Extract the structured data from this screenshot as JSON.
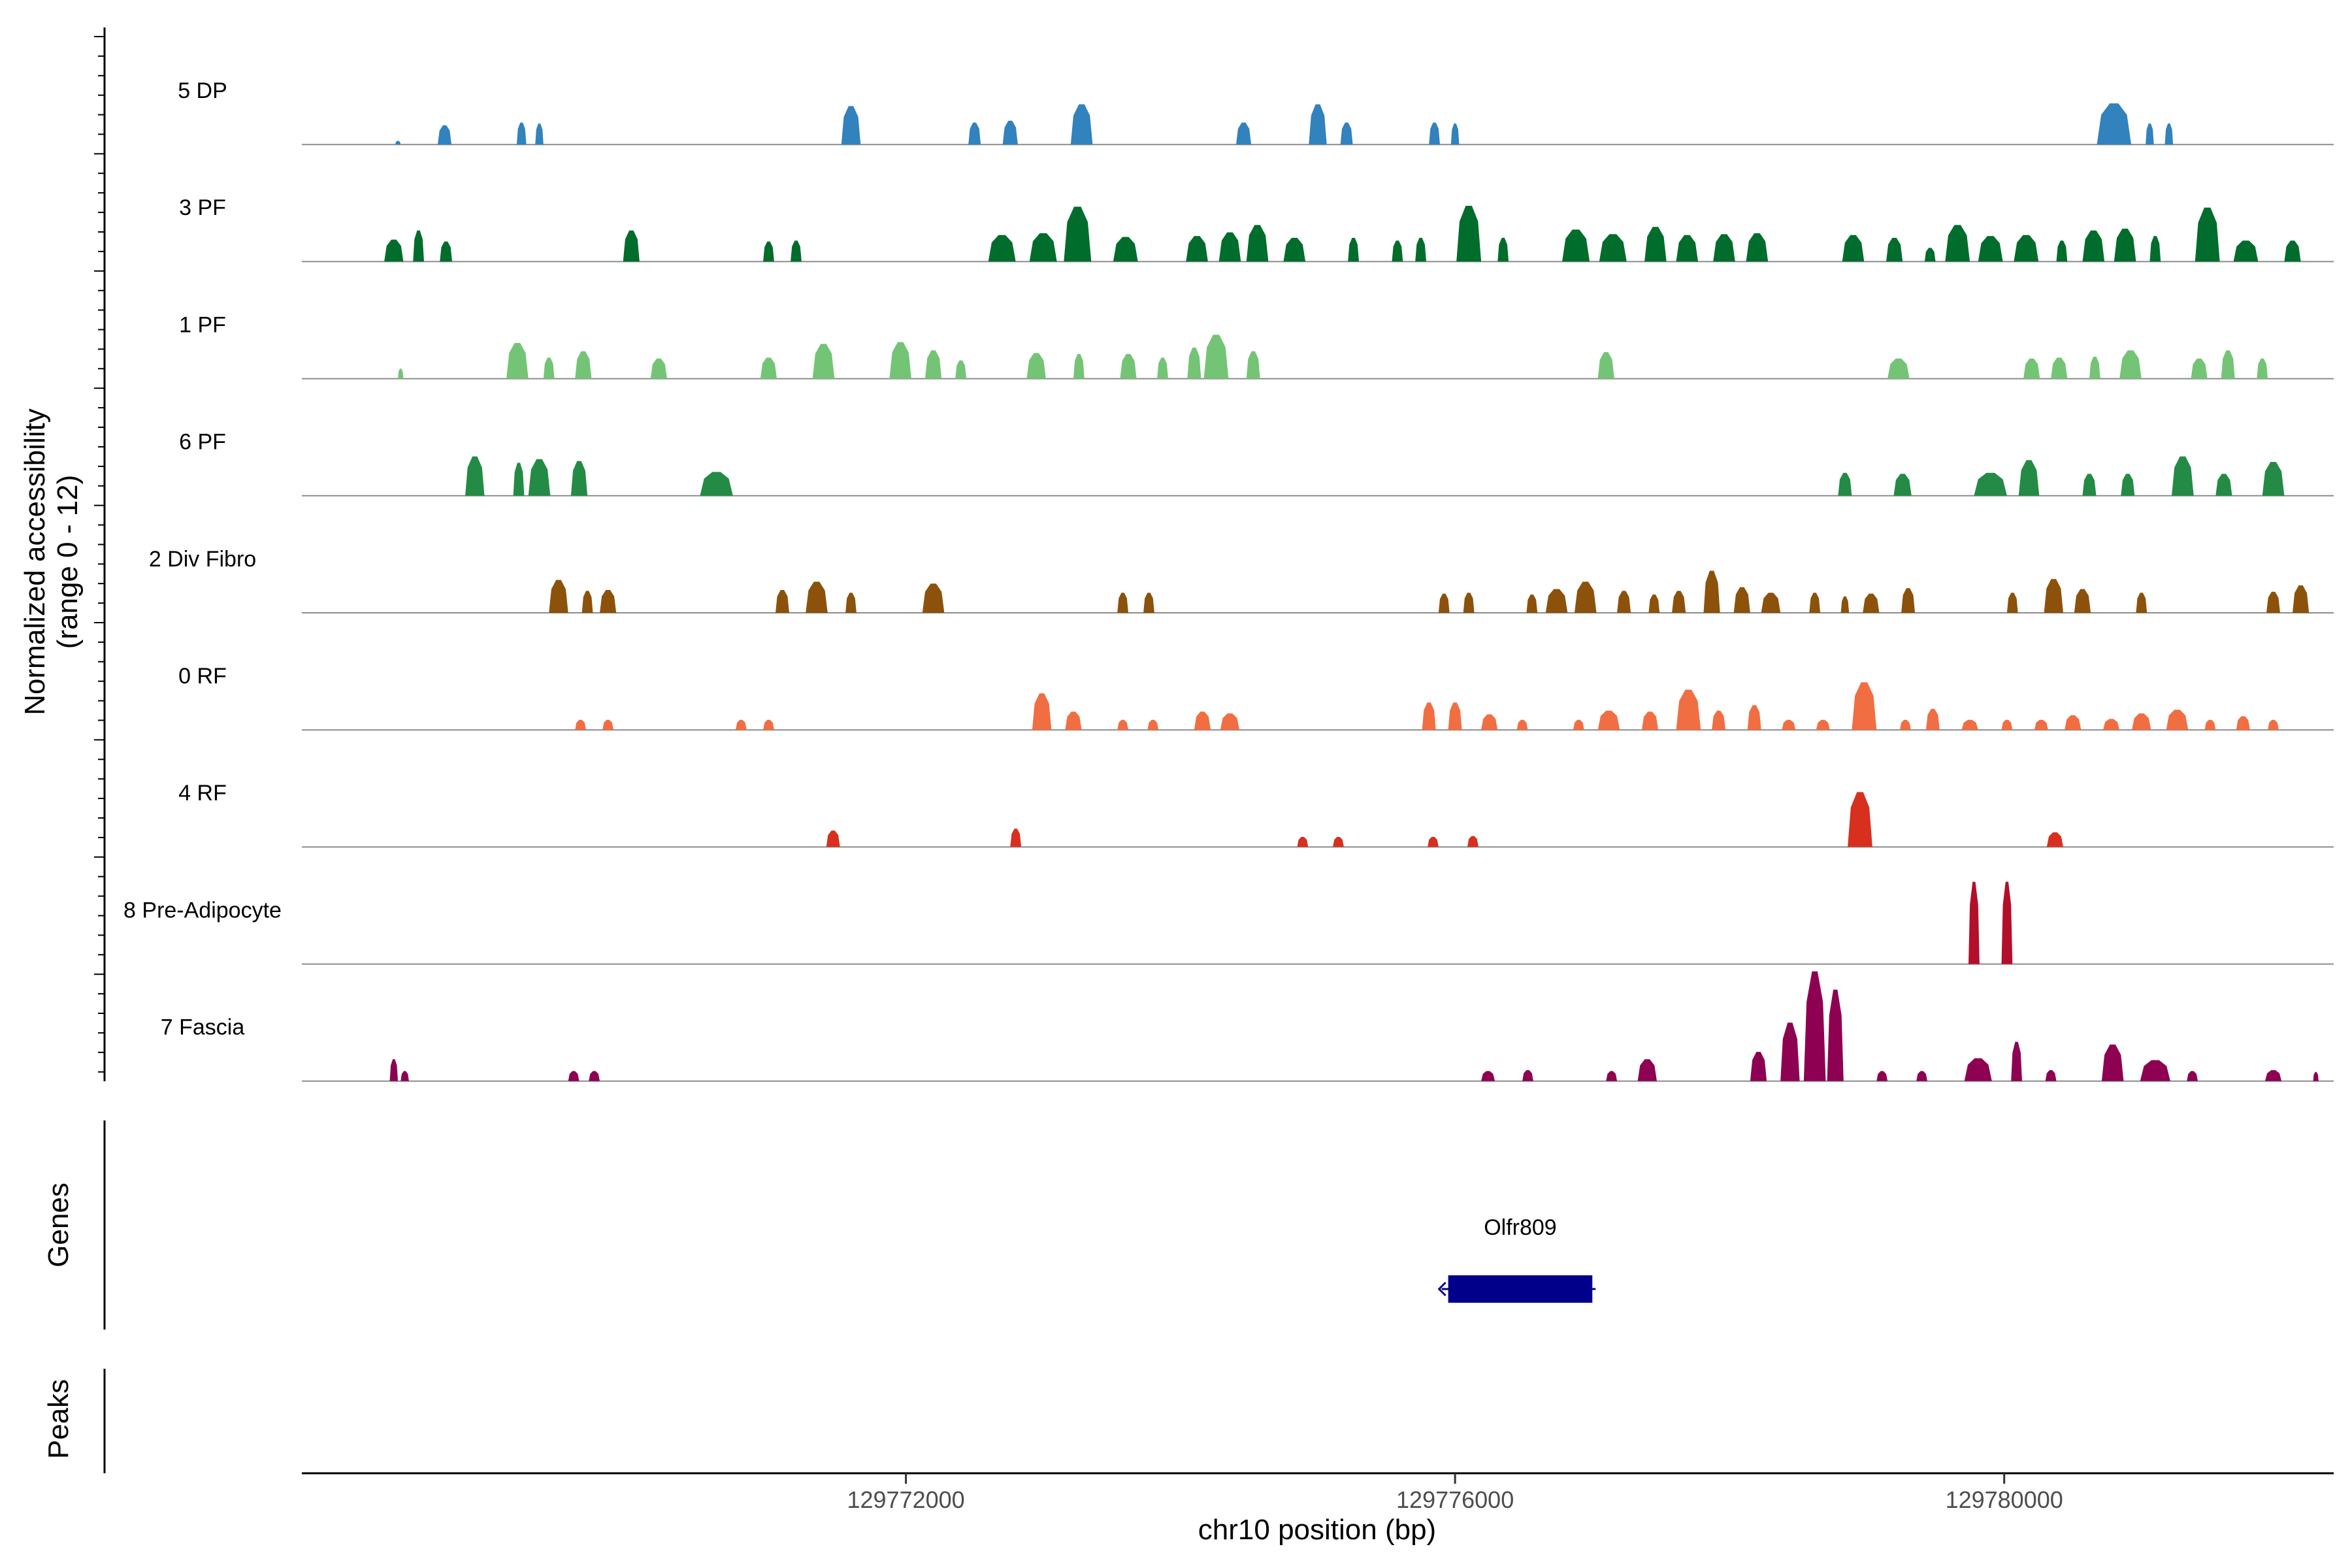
{
  "chart_data": {
    "type": "area",
    "chrom": "chr10",
    "xlabel": "chr10 position (bp)",
    "ylabel_line1": "Normalized accessibility",
    "ylabel_line2": "(range 0 - 12)",
    "ylim": [
      0,
      12
    ],
    "xlim": [
      129767600,
      129782400
    ],
    "x_ticks": [
      {
        "value": 129772000,
        "label": "129772000"
      },
      {
        "value": 129776000,
        "label": "129776000"
      },
      {
        "value": 129780000,
        "label": "129780000"
      }
    ],
    "genes_panel_label": "Genes",
    "peaks_panel_label": "Peaks",
    "genes": [
      {
        "name": "Olfr809",
        "start": 129775950,
        "end": 129777000,
        "strand": "-",
        "color": "#00008b"
      }
    ],
    "peaks": [],
    "tracks": [
      {
        "name": "5 DP",
        "color": "#3182bd",
        "peaks": [
          [
            129768300,
            0.4,
            40
          ],
          [
            129768640,
            2.1,
            100
          ],
          [
            129769200,
            2.4,
            70
          ],
          [
            129769330,
            2.3,
            60
          ],
          [
            129771600,
            4.2,
            140
          ],
          [
            129772500,
            2.4,
            90
          ],
          [
            129772760,
            2.6,
            110
          ],
          [
            129773280,
            4.4,
            160
          ],
          [
            129774460,
            2.4,
            110
          ],
          [
            129775000,
            4.4,
            130
          ],
          [
            129775210,
            2.4,
            90
          ],
          [
            129775850,
            2.4,
            80
          ],
          [
            129776000,
            2.3,
            60
          ],
          [
            129780800,
            4.5,
            250
          ],
          [
            129781060,
            2.3,
            60
          ],
          [
            129781200,
            2.3,
            60
          ]
        ]
      },
      {
        "name": "3 PF",
        "color": "#006d2c",
        "peaks": [
          [
            129768270,
            2.4,
            140
          ],
          [
            129768450,
            3.4,
            80
          ],
          [
            129768650,
            2.2,
            90
          ],
          [
            129770000,
            3.4,
            120
          ],
          [
            129771000,
            2.2,
            80
          ],
          [
            129771200,
            2.3,
            80
          ],
          [
            129772700,
            2.9,
            200
          ],
          [
            129773000,
            3.1,
            200
          ],
          [
            129773250,
            6.0,
            200
          ],
          [
            129773600,
            2.7,
            180
          ],
          [
            129774120,
            2.8,
            160
          ],
          [
            129774360,
            3.2,
            160
          ],
          [
            129774560,
            4.0,
            160
          ],
          [
            129774830,
            2.6,
            160
          ],
          [
            129775260,
            2.6,
            80
          ],
          [
            129775580,
            2.3,
            80
          ],
          [
            129775750,
            2.6,
            80
          ],
          [
            129776100,
            6.1,
            180
          ],
          [
            129776350,
            2.6,
            80
          ],
          [
            129776880,
            3.5,
            200
          ],
          [
            129777150,
            3.0,
            200
          ],
          [
            129777460,
            3.8,
            160
          ],
          [
            129777690,
            2.9,
            160
          ],
          [
            129777960,
            3.0,
            160
          ],
          [
            129778200,
            3.1,
            160
          ],
          [
            129778900,
            2.9,
            160
          ],
          [
            129779200,
            2.6,
            120
          ],
          [
            129779460,
            1.5,
            80
          ],
          [
            129779660,
            4.0,
            180
          ],
          [
            129779900,
            2.8,
            180
          ],
          [
            129780160,
            2.9,
            180
          ],
          [
            129780420,
            2.3,
            80
          ],
          [
            129780650,
            3.4,
            160
          ],
          [
            129780880,
            3.6,
            160
          ],
          [
            129781100,
            2.8,
            80
          ],
          [
            129781480,
            5.9,
            180
          ],
          [
            129781760,
            2.3,
            180
          ],
          [
            129782100,
            2.3,
            120
          ]
        ]
      },
      {
        "name": "1 PF",
        "color": "#74c476",
        "peaks": [
          [
            129768320,
            1.1,
            40
          ],
          [
            129769170,
            3.9,
            160
          ],
          [
            129769400,
            2.3,
            80
          ],
          [
            129769650,
            3.0,
            120
          ],
          [
            129770200,
            2.2,
            120
          ],
          [
            129771000,
            2.3,
            120
          ],
          [
            129771400,
            3.8,
            160
          ],
          [
            129771960,
            4.0,
            160
          ],
          [
            129772200,
            3.1,
            120
          ],
          [
            129772400,
            2.0,
            80
          ],
          [
            129772950,
            2.8,
            140
          ],
          [
            129773260,
            2.7,
            80
          ],
          [
            129773620,
            2.7,
            120
          ],
          [
            129773870,
            2.3,
            80
          ],
          [
            129774100,
            3.4,
            100
          ],
          [
            129774260,
            4.8,
            180
          ],
          [
            129774530,
            3.0,
            100
          ],
          [
            129777100,
            2.9,
            120
          ],
          [
            129779230,
            2.2,
            160
          ],
          [
            129780200,
            2.2,
            120
          ],
          [
            129780400,
            2.3,
            120
          ],
          [
            129780660,
            2.4,
            80
          ],
          [
            129780920,
            3.1,
            160
          ],
          [
            129781420,
            2.2,
            120
          ],
          [
            129781630,
            3.1,
            100
          ],
          [
            129781880,
            2.2,
            80
          ]
        ]
      },
      {
        "name": "6 PF",
        "color": "#238b45",
        "peaks": [
          [
            129768860,
            4.3,
            140
          ],
          [
            129769180,
            3.6,
            80
          ],
          [
            129769330,
            4.0,
            160
          ],
          [
            129769620,
            3.8,
            120
          ],
          [
            129770620,
            2.6,
            240
          ],
          [
            129778840,
            2.5,
            100
          ],
          [
            129779260,
            2.4,
            130
          ],
          [
            129779900,
            2.5,
            240
          ],
          [
            129780180,
            3.9,
            150
          ],
          [
            129780620,
            2.4,
            100
          ],
          [
            129780900,
            2.4,
            100
          ],
          [
            129781300,
            4.3,
            160
          ],
          [
            129781600,
            2.4,
            120
          ],
          [
            129781960,
            3.7,
            160
          ]
        ]
      },
      {
        "name": "2 Div Fibro",
        "color": "#8c510a",
        "peaks": [
          [
            129769470,
            3.6,
            140
          ],
          [
            129769680,
            2.4,
            80
          ],
          [
            129769830,
            2.5,
            120
          ],
          [
            129771100,
            2.5,
            100
          ],
          [
            129771350,
            3.4,
            160
          ],
          [
            129771600,
            2.2,
            80
          ],
          [
            129772200,
            3.2,
            160
          ],
          [
            129773580,
            2.2,
            80
          ],
          [
            129773770,
            2.2,
            80
          ],
          [
            129775920,
            2.1,
            80
          ],
          [
            129776100,
            2.2,
            80
          ],
          [
            129776560,
            2.0,
            80
          ],
          [
            129776740,
            2.6,
            160
          ],
          [
            129776950,
            3.4,
            160
          ],
          [
            129777230,
            2.4,
            100
          ],
          [
            129777450,
            2.0,
            80
          ],
          [
            129777630,
            2.4,
            100
          ],
          [
            129777870,
            4.6,
            120
          ],
          [
            129778090,
            2.8,
            120
          ],
          [
            129778300,
            2.2,
            140
          ],
          [
            129778620,
            2.2,
            80
          ],
          [
            129778840,
            1.8,
            60
          ],
          [
            129779030,
            2.1,
            120
          ],
          [
            129779300,
            2.7,
            100
          ],
          [
            129780060,
            2.2,
            80
          ],
          [
            129780360,
            3.7,
            140
          ],
          [
            129780570,
            2.6,
            120
          ],
          [
            129781000,
            2.2,
            80
          ],
          [
            129781960,
            2.3,
            100
          ],
          [
            129782160,
            3.0,
            120
          ]
        ]
      },
      {
        "name": "0 RF",
        "color": "#f16e42",
        "peaks": [
          [
            129769630,
            1.1,
            80
          ],
          [
            129769830,
            1.1,
            80
          ],
          [
            129770800,
            1.1,
            80
          ],
          [
            129771000,
            1.1,
            80
          ],
          [
            129772990,
            4.0,
            140
          ],
          [
            129773220,
            2.0,
            120
          ],
          [
            129773580,
            1.1,
            80
          ],
          [
            129773800,
            1.1,
            80
          ],
          [
            129774160,
            2.0,
            120
          ],
          [
            129774360,
            1.8,
            140
          ],
          [
            129775810,
            3.0,
            100
          ],
          [
            129776000,
            3.0,
            100
          ],
          [
            129776250,
            1.7,
            120
          ],
          [
            129776490,
            1.1,
            80
          ],
          [
            129776900,
            1.1,
            80
          ],
          [
            129777120,
            2.1,
            160
          ],
          [
            129777420,
            2.0,
            120
          ],
          [
            129777700,
            4.4,
            180
          ],
          [
            129777920,
            2.1,
            100
          ],
          [
            129778180,
            2.7,
            100
          ],
          [
            129778430,
            1.1,
            100
          ],
          [
            129778680,
            1.1,
            100
          ],
          [
            129778980,
            5.2,
            180
          ],
          [
            129779280,
            1.1,
            80
          ],
          [
            129779480,
            2.3,
            100
          ],
          [
            129779750,
            1.1,
            120
          ],
          [
            129780020,
            1.1,
            80
          ],
          [
            129780270,
            1.1,
            100
          ],
          [
            129780500,
            1.6,
            120
          ],
          [
            129780780,
            1.2,
            120
          ],
          [
            129781000,
            1.8,
            140
          ],
          [
            129781260,
            2.2,
            160
          ],
          [
            129781500,
            1.1,
            80
          ],
          [
            129781740,
            1.5,
            100
          ],
          [
            129781960,
            1.1,
            80
          ]
        ]
      },
      {
        "name": "4 RF",
        "color": "#d7301f",
        "peaks": [
          [
            129771470,
            1.8,
            100
          ],
          [
            129772800,
            2.0,
            80
          ],
          [
            129774890,
            1.1,
            80
          ],
          [
            129775150,
            1.1,
            80
          ],
          [
            129775840,
            1.1,
            80
          ],
          [
            129776130,
            1.2,
            80
          ],
          [
            129778950,
            6.0,
            180
          ],
          [
            129780370,
            1.6,
            120
          ]
        ]
      },
      {
        "name": "8 Pre-Adipocyte",
        "color": "#b30f2a",
        "peaks": [
          [
            129779780,
            9.0,
            80
          ],
          [
            129780020,
            9.0,
            80
          ]
        ]
      },
      {
        "name": "7 Fascia",
        "color": "#8e0152",
        "peaks": [
          [
            129768270,
            2.4,
            60
          ],
          [
            129768350,
            1.1,
            60
          ],
          [
            129769580,
            1.1,
            80
          ],
          [
            129769730,
            1.1,
            80
          ],
          [
            129776240,
            1.1,
            100
          ],
          [
            129776530,
            1.2,
            80
          ],
          [
            129777140,
            1.1,
            80
          ],
          [
            129777400,
            2.4,
            140
          ],
          [
            129778210,
            3.2,
            120
          ],
          [
            129778440,
            6.4,
            140
          ],
          [
            129778620,
            12.0,
            160
          ],
          [
            129778770,
            10.0,
            120
          ],
          [
            129779110,
            1.1,
            80
          ],
          [
            129779400,
            1.1,
            80
          ],
          [
            129779810,
            2.5,
            200
          ],
          [
            129780090,
            4.3,
            80
          ],
          [
            129780340,
            1.2,
            80
          ],
          [
            129780790,
            4.0,
            160
          ],
          [
            129781100,
            2.3,
            220
          ],
          [
            129781370,
            1.1,
            80
          ],
          [
            129781960,
            1.2,
            120
          ],
          [
            129782270,
            1.0,
            40
          ]
        ]
      }
    ]
  }
}
